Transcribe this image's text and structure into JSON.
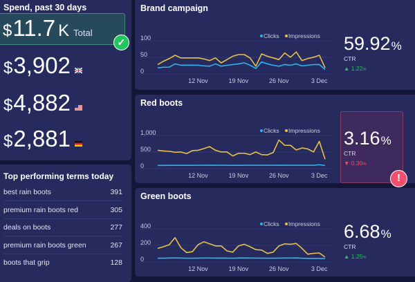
{
  "colors": {
    "clicks": "#2bb5f0",
    "impressions": "#e8c24a",
    "up": "#22c55e",
    "down": "#f0506e"
  },
  "spend": {
    "title": "Spend, past 30 days",
    "currency": "$",
    "total_value": "11.7",
    "total_suffix": "K",
    "total_label": "Total",
    "status_icon": "check-icon",
    "regions": [
      {
        "value": "3,902",
        "flag": "uk-flag-icon"
      },
      {
        "value": "4,882",
        "flag": "us-flag-icon"
      },
      {
        "value": "2,881",
        "flag": "germany-flag-icon"
      }
    ]
  },
  "terms": {
    "title": "Top performing terms today",
    "items": [
      {
        "term": "best rain boots",
        "count": "391"
      },
      {
        "term": "premium rain boots red",
        "count": "305"
      },
      {
        "term": "deals on boots",
        "count": "277"
      },
      {
        "term": "premium rain boots green",
        "count": "267"
      },
      {
        "term": "boots that grip",
        "count": "128"
      }
    ]
  },
  "campaigns": [
    {
      "title": "Brand campaign",
      "ctr": "59.92",
      "pct": "%",
      "ctr_label": "CTR",
      "delta": "1.22",
      "delta_unit": "%",
      "trend": "up",
      "alert": false
    },
    {
      "title": "Red boots",
      "ctr": "3.16",
      "pct": "%",
      "ctr_label": "CTR",
      "delta": "0.30",
      "delta_unit": "%",
      "trend": "down",
      "alert": true,
      "alert_icon": "exclamation-icon"
    },
    {
      "title": "Green boots",
      "ctr": "6.68",
      "pct": "%",
      "ctr_label": "CTR",
      "delta": "1.25",
      "delta_unit": "%",
      "trend": "up",
      "alert": false
    }
  ],
  "chart_data": [
    {
      "type": "line",
      "ylim": [
        0,
        100
      ],
      "yticks": [
        "100",
        "50",
        "0"
      ],
      "xticks": [
        "12 Nov",
        "19 Nov",
        "26 Nov",
        "3 Dec"
      ],
      "legend": "top-right",
      "grid": true,
      "x": [
        "5 Nov",
        "6 Nov",
        "7 Nov",
        "8 Nov",
        "9 Nov",
        "10 Nov",
        "11 Nov",
        "12 Nov",
        "13 Nov",
        "14 Nov",
        "15 Nov",
        "16 Nov",
        "17 Nov",
        "18 Nov",
        "19 Nov",
        "20 Nov",
        "21 Nov",
        "22 Nov",
        "23 Nov",
        "24 Nov",
        "25 Nov",
        "26 Nov",
        "27 Nov",
        "28 Nov",
        "29 Nov",
        "30 Nov",
        "1 Dec",
        "2 Dec",
        "3 Dec",
        "4 Dec"
      ],
      "series": [
        {
          "name": "Clicks",
          "values": [
            10,
            12,
            12,
            22,
            18,
            18,
            18,
            18,
            16,
            15,
            22,
            15,
            18,
            20,
            22,
            25,
            18,
            8,
            28,
            22,
            18,
            15,
            20,
            18,
            22,
            16,
            18,
            20,
            20,
            5
          ]
        },
        {
          "name": "Impressions",
          "values": [
            20,
            30,
            38,
            48,
            40,
            40,
            40,
            40,
            37,
            32,
            40,
            25,
            35,
            45,
            50,
            50,
            40,
            15,
            52,
            45,
            40,
            35,
            55,
            42,
            58,
            32,
            38,
            42,
            48,
            10
          ]
        }
      ]
    },
    {
      "type": "line",
      "ylim": [
        0,
        1000
      ],
      "yticks": [
        "1,000",
        "500",
        "0"
      ],
      "xticks": [
        "12 Nov",
        "19 Nov",
        "26 Nov",
        "3 Dec"
      ],
      "legend": "top-right",
      "grid": true,
      "x": [
        "5 Nov",
        "6 Nov",
        "7 Nov",
        "8 Nov",
        "9 Nov",
        "10 Nov",
        "11 Nov",
        "12 Nov",
        "13 Nov",
        "14 Nov",
        "15 Nov",
        "16 Nov",
        "17 Nov",
        "18 Nov",
        "19 Nov",
        "20 Nov",
        "21 Nov",
        "22 Nov",
        "23 Nov",
        "24 Nov",
        "25 Nov",
        "26 Nov",
        "27 Nov",
        "28 Nov",
        "29 Nov",
        "30 Nov",
        "1 Dec",
        "2 Dec",
        "3 Dec",
        "4 Dec"
      ],
      "series": [
        {
          "name": "Clicks",
          "values": [
            15,
            15,
            16,
            16,
            16,
            17,
            17,
            18,
            18,
            20,
            20,
            18,
            18,
            17,
            17,
            18,
            18,
            18,
            18,
            18,
            18,
            20,
            20,
            18,
            18,
            18,
            18,
            18,
            35,
            10
          ]
        },
        {
          "name": "Impressions",
          "values": [
            470,
            450,
            440,
            410,
            420,
            370,
            460,
            470,
            520,
            580,
            470,
            420,
            420,
            300,
            380,
            380,
            340,
            420,
            340,
            330,
            400,
            780,
            620,
            620,
            480,
            540,
            510,
            420,
            740,
            200
          ]
        }
      ]
    },
    {
      "type": "line",
      "ylim": [
        0,
        400
      ],
      "yticks": [
        "400",
        "200",
        "0"
      ],
      "xticks": [
        "12 Nov",
        "19 Nov",
        "26 Nov",
        "3 Dec"
      ],
      "legend": "top-right",
      "grid": true,
      "x": [
        "5 Nov",
        "6 Nov",
        "7 Nov",
        "8 Nov",
        "9 Nov",
        "10 Nov",
        "11 Nov",
        "12 Nov",
        "13 Nov",
        "14 Nov",
        "15 Nov",
        "16 Nov",
        "17 Nov",
        "18 Nov",
        "19 Nov",
        "20 Nov",
        "21 Nov",
        "22 Nov",
        "23 Nov",
        "24 Nov",
        "25 Nov",
        "26 Nov",
        "27 Nov",
        "28 Nov",
        "29 Nov",
        "30 Nov",
        "1 Dec",
        "2 Dec",
        "3 Dec",
        "4 Dec"
      ],
      "series": [
        {
          "name": "Clicks",
          "values": [
            12,
            12,
            14,
            15,
            14,
            12,
            12,
            13,
            14,
            14,
            13,
            14,
            13,
            12,
            14,
            15,
            14,
            13,
            13,
            12,
            12,
            13,
            14,
            14,
            15,
            12,
            10,
            10,
            10,
            8
          ]
        },
        {
          "name": "Impressions",
          "values": [
            130,
            150,
            175,
            260,
            140,
            80,
            90,
            175,
            210,
            185,
            160,
            160,
            100,
            85,
            160,
            180,
            150,
            115,
            110,
            70,
            85,
            160,
            185,
            180,
            190,
            130,
            60,
            70,
            75,
            25
          ]
        }
      ]
    }
  ]
}
